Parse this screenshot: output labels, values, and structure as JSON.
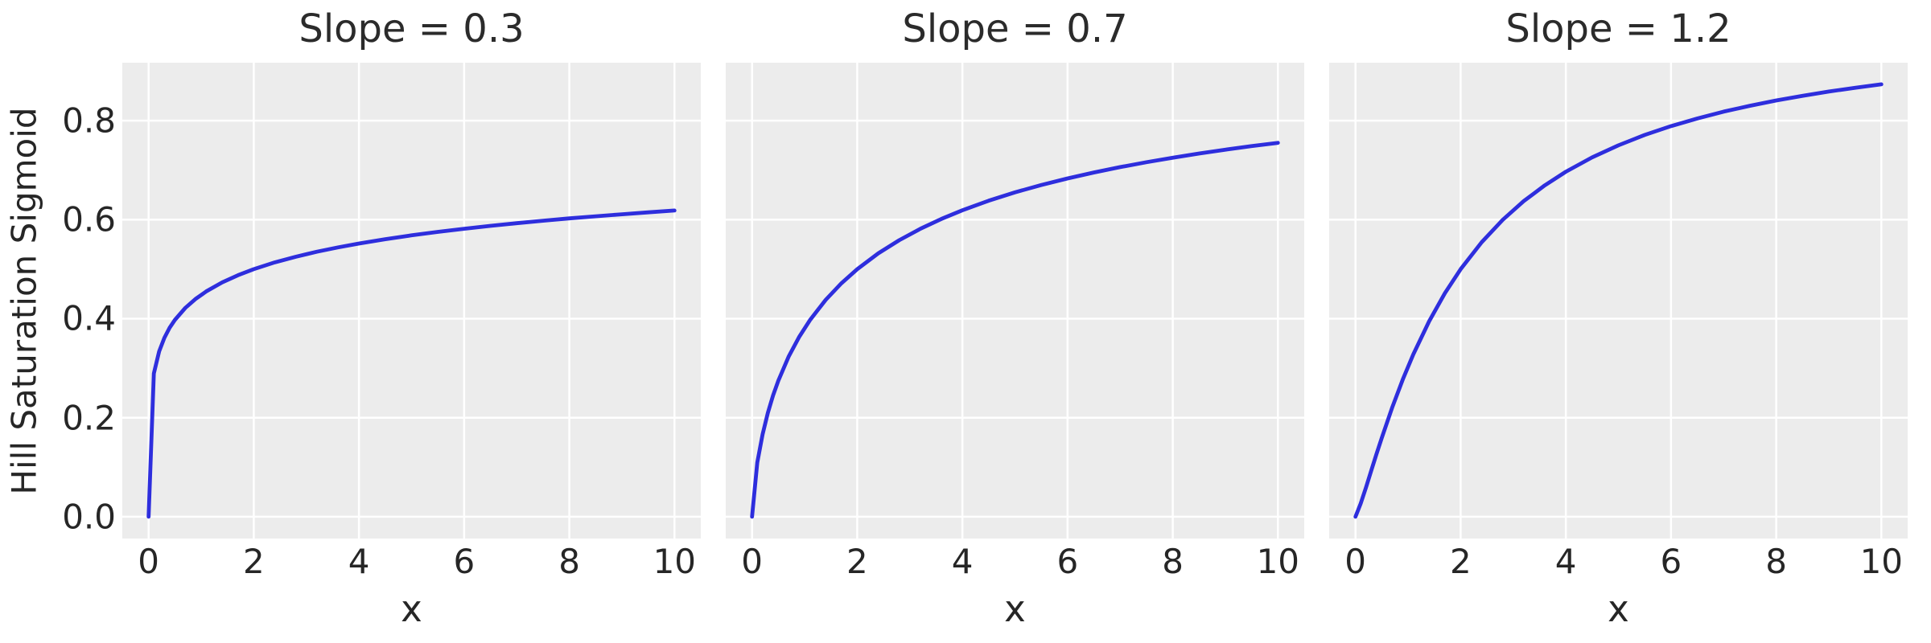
{
  "figure": {
    "background_color": "#ffffff",
    "axes_background_color": "#ececec",
    "grid_color": "#ffffff",
    "line_color": "#2e2edd",
    "text_color": "#262626"
  },
  "chart_data": {
    "type": "line",
    "xlabel": "x",
    "ylabel": "Hill Saturation Sigmoid",
    "grid": true,
    "legend": "none",
    "xlim": [
      -0.5,
      10.5
    ],
    "ylim": [
      -0.044,
      0.917
    ],
    "x_ticks": {
      "values": [
        0,
        2,
        4,
        6,
        8,
        10
      ],
      "labels": [
        "0",
        "2",
        "4",
        "6",
        "8",
        "10"
      ]
    },
    "y_ticks": {
      "values": [
        0.0,
        0.2,
        0.4,
        0.6,
        0.8
      ],
      "labels": [
        "0.0",
        "0.2",
        "0.4",
        "0.6",
        "0.8"
      ]
    },
    "x": [
      0,
      0.1,
      0.2,
      0.3,
      0.4,
      0.5,
      0.7,
      0.9,
      1.1,
      1.4,
      1.7,
      2,
      2.4,
      2.8,
      3.2,
      3.6,
      4,
      4.5,
      5,
      5.5,
      6,
      6.5,
      7,
      7.5,
      8,
      8.5,
      9,
      9.5,
      10
    ],
    "subplots": [
      {
        "title": "Slope = 0.3",
        "slope": 0.3,
        "y": [
          0,
          0.2893,
          0.3339,
          0.3614,
          0.3816,
          0.3975,
          0.4219,
          0.4404,
          0.4553,
          0.4733,
          0.4878,
          0.5,
          0.5137,
          0.5252,
          0.5352,
          0.544,
          0.5518,
          0.5605,
          0.5683,
          0.5753,
          0.5816,
          0.5875,
          0.5929,
          0.5979,
          0.6025,
          0.6068,
          0.6109,
          0.6148,
          0.6184
        ]
      },
      {
        "title": "Slope = 0.7",
        "slope": 0.7,
        "y": [
          0,
          0.1094,
          0.1663,
          0.2095,
          0.2448,
          0.2748,
          0.3241,
          0.3638,
          0.3969,
          0.4379,
          0.4716,
          0.5,
          0.5319,
          0.5586,
          0.5815,
          0.6014,
          0.619,
          0.6382,
          0.6551,
          0.67,
          0.6833,
          0.6953,
          0.7062,
          0.7161,
          0.7252,
          0.7336,
          0.7413,
          0.7485,
          0.7552
        ]
      },
      {
        "title": "Slope = 1.2",
        "slope": 1.2,
        "y": [
          0,
          0.0267,
          0.0593,
          0.0931,
          0.1266,
          0.1593,
          0.221,
          0.2772,
          0.328,
          0.3946,
          0.4514,
          0.5,
          0.5545,
          0.5996,
          0.6374,
          0.6693,
          0.6967,
          0.7257,
          0.7502,
          0.771,
          0.7889,
          0.8044,
          0.8181,
          0.83,
          0.8407,
          0.8502,
          0.8588,
          0.8664,
          0.8734
        ]
      }
    ]
  }
}
